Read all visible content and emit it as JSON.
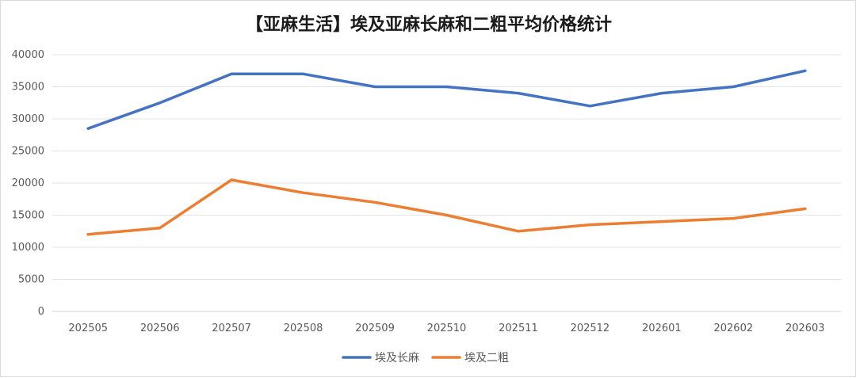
{
  "chart_data": {
    "type": "line",
    "title": "【亚麻生活】埃及亚麻长麻和二粗平均价格统计",
    "categories": [
      "202505",
      "202506",
      "202507",
      "202508",
      "202509",
      "202510",
      "202511",
      "202512",
      "202601",
      "202602",
      "202603"
    ],
    "series": [
      {
        "name": "埃及长麻",
        "color": "#4472C4",
        "values": [
          28500,
          32500,
          37000,
          37000,
          35000,
          35000,
          34000,
          32000,
          34000,
          35000,
          37500
        ]
      },
      {
        "name": "埃及二粗",
        "color": "#ED7D31",
        "values": [
          12000,
          13000,
          20500,
          18500,
          17000,
          15000,
          12500,
          13500,
          14000,
          14500,
          16000
        ]
      }
    ],
    "yticks": [
      0,
      5000,
      10000,
      15000,
      20000,
      25000,
      30000,
      35000,
      40000
    ],
    "ylim": [
      0,
      40000
    ],
    "grid": true,
    "legend_position": "bottom",
    "xlabel": "",
    "ylabel": ""
  }
}
